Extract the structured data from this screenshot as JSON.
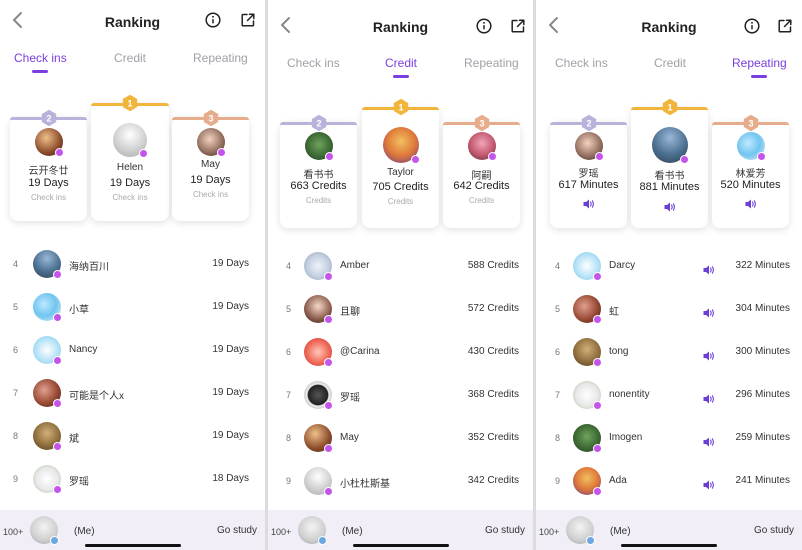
{
  "title": "Ranking",
  "tabs": [
    "Check ins",
    "Credit",
    "Repeating"
  ],
  "colors": {
    "accent": "#7b3fe0",
    "gold": "#f2b53c",
    "silver": "#b9b3dc",
    "bronze": "#e5ad8c",
    "badge": "#c454ea"
  },
  "icons": {
    "back": "chevron-left-icon",
    "info": "info-icon",
    "share": "share-icon",
    "medal": "medal-icon",
    "audio": "speaker-icon"
  },
  "panels": [
    {
      "active_tab": 0,
      "podium": [
        {
          "rank": 2,
          "name": "云开冬廿",
          "value": "19 Days",
          "sub": "Check ins"
        },
        {
          "rank": 1,
          "name": "Helen",
          "value": "19 Days",
          "sub": "Check ins"
        },
        {
          "rank": 3,
          "name": "May",
          "value": "19 Days",
          "sub": "Check ins"
        }
      ],
      "rows": [
        {
          "rank": "4",
          "name": "海纳百川",
          "value": "19 Days"
        },
        {
          "rank": "5",
          "name": "小草",
          "value": "19 Days"
        },
        {
          "rank": "6",
          "name": "Nancy",
          "value": "19 Days"
        },
        {
          "rank": "7",
          "name": "可能是个人x",
          "value": "19 Days"
        },
        {
          "rank": "8",
          "name": "斌",
          "value": "19 Days"
        },
        {
          "rank": "9",
          "name": "罗瑶",
          "value": "18 Days"
        }
      ]
    },
    {
      "active_tab": 1,
      "podium": [
        {
          "rank": 2,
          "name": "看书书",
          "value": "663 Credits",
          "sub": "Credits"
        },
        {
          "rank": 1,
          "name": "Taylor",
          "value": "705 Credits",
          "sub": "Credits"
        },
        {
          "rank": 3,
          "name": "阿嗣",
          "value": "642 Credits",
          "sub": "Credits"
        }
      ],
      "rows": [
        {
          "rank": "4",
          "name": "Amber",
          "value": "588 Credits"
        },
        {
          "rank": "5",
          "name": "且聊",
          "value": "572 Credits"
        },
        {
          "rank": "6",
          "name": "@Carina",
          "value": "430 Credits"
        },
        {
          "rank": "7",
          "name": "罗瑶",
          "value": "368 Credits"
        },
        {
          "rank": "8",
          "name": "May",
          "value": "352 Credits"
        },
        {
          "rank": "9",
          "name": "小杜杜斯基",
          "value": "342 Credits"
        }
      ]
    },
    {
      "active_tab": 2,
      "podium": [
        {
          "rank": 2,
          "name": "罗瑶",
          "value": "617 Minutes"
        },
        {
          "rank": 1,
          "name": "看书书",
          "value": "881 Minutes"
        },
        {
          "rank": 3,
          "name": "林爱芳",
          "value": "520 Minutes"
        }
      ],
      "rows": [
        {
          "rank": "4",
          "name": "Darcy",
          "value": "322 Minutes"
        },
        {
          "rank": "5",
          "name": "虹",
          "value": "304 Minutes"
        },
        {
          "rank": "6",
          "name": "tong",
          "value": "300 Minutes"
        },
        {
          "rank": "7",
          "name": "nonentity",
          "value": "296 Minutes"
        },
        {
          "rank": "8",
          "name": "Imogen",
          "value": "259 Minutes"
        },
        {
          "rank": "9",
          "name": "Ada",
          "value": "241 Minutes"
        }
      ]
    }
  ],
  "footer": {
    "rank": "100+",
    "me": "(Me)",
    "action": "Go study"
  }
}
